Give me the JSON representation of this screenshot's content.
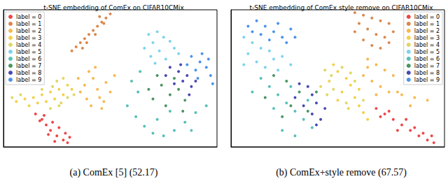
{
  "chart_data": [
    {
      "type": "scatter",
      "title": "t-SNE embedding of ComEx on CIFAR10CMix",
      "caption": "(a) ComEx [5] (52.17)",
      "xlim": [
        0,
        100
      ],
      "ylim": [
        0,
        100
      ],
      "tick_labels": false,
      "grid": false,
      "legend": "upper left",
      "series": [
        {
          "name": "label = 0",
          "color": "#e8191c",
          "values": [
            [
              15,
              24
            ],
            [
              18,
              20
            ],
            [
              20,
              16
            ],
            [
              22,
              12
            ],
            [
              25,
              8
            ],
            [
              28,
              5
            ],
            [
              30,
              3
            ],
            [
              19,
              23
            ],
            [
              23,
              18
            ],
            [
              26,
              14
            ],
            [
              29,
              10
            ],
            [
              31,
              7
            ],
            [
              17,
              19
            ],
            [
              21,
              9
            ],
            [
              24,
              4
            ]
          ]
        },
        {
          "name": "label = 1",
          "color": "#d2691e",
          "values": [
            [
              50,
              97
            ],
            [
              48,
              94
            ],
            [
              46,
              91
            ],
            [
              44,
              88
            ],
            [
              42,
              85
            ],
            [
              40,
              82
            ],
            [
              38,
              79
            ],
            [
              36,
              76
            ],
            [
              34,
              73
            ],
            [
              32,
              70
            ],
            [
              47,
              90
            ],
            [
              43,
              82
            ],
            [
              39,
              76
            ],
            [
              45,
              95
            ],
            [
              37,
              72
            ]
          ]
        },
        {
          "name": "label = 2",
          "color": "#f5a623",
          "values": [
            [
              40,
              55
            ],
            [
              42,
              50
            ],
            [
              38,
              45
            ],
            [
              44,
              42
            ],
            [
              48,
              47
            ],
            [
              36,
              40
            ],
            [
              45,
              36
            ],
            [
              50,
              40
            ],
            [
              41,
              30
            ],
            [
              46,
              28
            ],
            [
              35,
              50
            ],
            [
              52,
              52
            ],
            [
              39,
              35
            ],
            [
              43,
              58
            ],
            [
              47,
              33
            ]
          ]
        },
        {
          "name": "label = 3",
          "color": "#f0c419",
          "values": [
            [
              30,
              45
            ],
            [
              26,
              42
            ],
            [
              22,
              40
            ],
            [
              18,
              38
            ],
            [
              14,
              36
            ],
            [
              10,
              35
            ],
            [
              6,
              33
            ],
            [
              28,
              38
            ],
            [
              24,
              35
            ],
            [
              20,
              33
            ],
            [
              32,
              42
            ],
            [
              16,
              32
            ],
            [
              12,
              30
            ]
          ]
        },
        {
          "name": "label = 4",
          "color": "#d9cc3a",
          "values": [
            [
              25,
              48
            ],
            [
              28,
              50
            ],
            [
              23,
              44
            ],
            [
              30,
              36
            ],
            [
              27,
              32
            ],
            [
              22,
              28
            ],
            [
              8,
              38
            ],
            [
              4,
              36
            ],
            [
              18,
              42
            ],
            [
              33,
              38
            ],
            [
              26,
              30
            ]
          ]
        },
        {
          "name": "label = 5",
          "color": "#5bc8e8",
          "values": [
            [
              68,
              82
            ],
            [
              72,
              84
            ],
            [
              75,
              80
            ],
            [
              70,
              76
            ],
            [
              78,
              77
            ],
            [
              66,
              72
            ],
            [
              73,
              70
            ],
            [
              80,
              72
            ],
            [
              69,
              66
            ],
            [
              76,
              64
            ],
            [
              82,
              68
            ],
            [
              71,
              61
            ]
          ]
        },
        {
          "name": "label = 6",
          "color": "#2ab0a8",
          "values": [
            [
              60,
              48
            ],
            [
              63,
              40
            ],
            [
              58,
              30
            ],
            [
              62,
              22
            ],
            [
              66,
              15
            ],
            [
              70,
              10
            ],
            [
              75,
              8
            ],
            [
              80,
              12
            ],
            [
              85,
              18
            ],
            [
              90,
              25
            ],
            [
              95,
              30
            ],
            [
              64,
              55
            ],
            [
              72,
              20
            ],
            [
              78,
              26
            ],
            [
              88,
              12
            ]
          ]
        },
        {
          "name": "label = 7",
          "color": "#1a7a3a",
          "values": [
            [
              74,
              45
            ],
            [
              78,
              38
            ],
            [
              82,
              42
            ],
            [
              70,
              35
            ],
            [
              85,
              34
            ],
            [
              76,
              30
            ],
            [
              68,
              42
            ],
            [
              80,
              50
            ],
            [
              84,
              26
            ],
            [
              72,
              52
            ]
          ]
        },
        {
          "name": "label = 8",
          "color": "#1a1aa0",
          "values": [
            [
              78,
              58
            ],
            [
              82,
              55
            ],
            [
              86,
              52
            ],
            [
              80,
              46
            ],
            [
              84,
              48
            ],
            [
              88,
              44
            ],
            [
              76,
              52
            ],
            [
              90,
              48
            ],
            [
              83,
              60
            ],
            [
              87,
              38
            ]
          ]
        },
        {
          "name": "label = 9",
          "color": "#1e78e6",
          "values": [
            [
              88,
              66
            ],
            [
              92,
              62
            ],
            [
              95,
              58
            ],
            [
              90,
              56
            ],
            [
              97,
              52
            ],
            [
              86,
              60
            ],
            [
              93,
              68
            ],
            [
              96,
              64
            ],
            [
              91,
              50
            ],
            [
              98,
              46
            ]
          ]
        }
      ]
    },
    {
      "type": "scatter",
      "title": "t-SNE embedding of ComEx style remove on CIFAR10CMix",
      "caption": "(b) ComEx+style remove (67.57)",
      "xlim": [
        0,
        100
      ],
      "ylim": [
        0,
        100
      ],
      "tick_labels": false,
      "grid": false,
      "legend": "upper right",
      "series": [
        {
          "name": "label = 0",
          "color": "#e8191c",
          "values": [
            [
              68,
              28
            ],
            [
              72,
              24
            ],
            [
              76,
              20
            ],
            [
              80,
              16
            ],
            [
              84,
              12
            ],
            [
              88,
              8
            ],
            [
              92,
              5
            ],
            [
              95,
              3
            ],
            [
              74,
              26
            ],
            [
              82,
              20
            ],
            [
              86,
              14
            ],
            [
              90,
              10
            ],
            [
              70,
              22
            ],
            [
              78,
              12
            ],
            [
              94,
              8
            ]
          ]
        },
        {
          "name": "label = 1",
          "color": "#d2691e",
          "values": [
            [
              58,
              98
            ],
            [
              62,
              96
            ],
            [
              66,
              94
            ],
            [
              70,
              92
            ],
            [
              74,
              90
            ],
            [
              60,
              90
            ],
            [
              64,
              86
            ],
            [
              68,
              82
            ],
            [
              72,
              80
            ],
            [
              76,
              84
            ],
            [
              62,
              78
            ],
            [
              66,
              74
            ],
            [
              70,
              72
            ],
            [
              58,
              84
            ],
            [
              74,
              76
            ]
          ]
        },
        {
          "name": "label = 2",
          "color": "#f5a623",
          "values": [
            [
              64,
              64
            ],
            [
              68,
              60
            ],
            [
              72,
              56
            ],
            [
              76,
              52
            ],
            [
              62,
              52
            ],
            [
              66,
              48
            ],
            [
              70,
              44
            ],
            [
              74,
              40
            ],
            [
              80,
              38
            ],
            [
              86,
              36
            ],
            [
              92,
              34
            ],
            [
              78,
              40
            ],
            [
              68,
              38
            ],
            [
              84,
              30
            ],
            [
              64,
              58
            ]
          ]
        },
        {
          "name": "label = 3",
          "color": "#f0c419",
          "values": [
            [
              48,
              60
            ],
            [
              50,
              55
            ],
            [
              54,
              50
            ],
            [
              56,
              45
            ],
            [
              52,
              40
            ],
            [
              58,
              36
            ],
            [
              60,
              30
            ],
            [
              62,
              25
            ],
            [
              64,
              20
            ],
            [
              46,
              48
            ],
            [
              55,
              28
            ],
            [
              60,
              42
            ],
            [
              50,
              34
            ]
          ]
        },
        {
          "name": "label = 4",
          "color": "#d9cc3a",
          "values": [
            [
              44,
              56
            ],
            [
              47,
              52
            ],
            [
              52,
              58
            ],
            [
              56,
              54
            ],
            [
              42,
              44
            ],
            [
              58,
              48
            ],
            [
              54,
              32
            ],
            [
              48,
              42
            ],
            [
              62,
              34
            ],
            [
              45,
              38
            ]
          ]
        },
        {
          "name": "label = 5",
          "color": "#5bc8e8",
          "values": [
            [
              6,
              80
            ],
            [
              10,
              76
            ],
            [
              14,
              72
            ],
            [
              8,
              68
            ],
            [
              18,
              70
            ],
            [
              12,
              62
            ],
            [
              20,
              64
            ],
            [
              16,
              58
            ],
            [
              24,
              66
            ],
            [
              6,
              60
            ],
            [
              22,
              56
            ],
            [
              28,
              60
            ]
          ]
        },
        {
          "name": "label = 6",
          "color": "#2ab0a8",
          "values": [
            [
              14,
              50
            ],
            [
              18,
              44
            ],
            [
              22,
              38
            ],
            [
              26,
              32
            ],
            [
              30,
              26
            ],
            [
              34,
              20
            ],
            [
              38,
              14
            ],
            [
              30,
              8
            ],
            [
              24,
              12
            ],
            [
              10,
              40
            ],
            [
              20,
              28
            ],
            [
              36,
              34
            ],
            [
              28,
              44
            ]
          ]
        },
        {
          "name": "label = 7",
          "color": "#1a7a3a",
          "values": [
            [
              20,
              52
            ],
            [
              26,
              48
            ],
            [
              32,
              40
            ],
            [
              28,
              30
            ],
            [
              36,
              26
            ],
            [
              40,
              40
            ],
            [
              24,
              22
            ],
            [
              16,
              36
            ]
          ]
        },
        {
          "name": "label = 8",
          "color": "#1a1aa0",
          "values": [
            [
              30,
              36
            ],
            [
              34,
              30
            ],
            [
              38,
              24
            ],
            [
              40,
              32
            ],
            [
              42,
              20
            ],
            [
              36,
              44
            ],
            [
              32,
              46
            ],
            [
              44,
              28
            ],
            [
              40,
              16
            ],
            [
              38,
              38
            ]
          ]
        },
        {
          "name": "label = 9",
          "color": "#1e78e6",
          "values": [
            [
              8,
              88
            ],
            [
              12,
              92
            ],
            [
              16,
              88
            ],
            [
              20,
              84
            ],
            [
              24,
              80
            ],
            [
              28,
              86
            ],
            [
              14,
              82
            ],
            [
              22,
              90
            ],
            [
              10,
              84
            ],
            [
              26,
              76
            ],
            [
              30,
              80
            ],
            [
              18,
              78
            ]
          ]
        }
      ]
    }
  ]
}
